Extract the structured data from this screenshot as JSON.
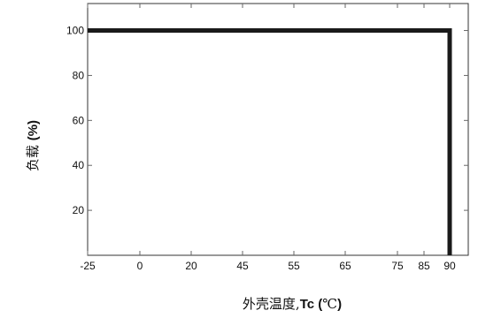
{
  "chart_data": {
    "type": "line",
    "title": "",
    "xlabel": "外壳温度,Tc (℃)",
    "xlabel_parts": {
      "prefix": "外壳温度,",
      "bold": "Tc",
      "paren_open": " (",
      "unit": "℃",
      "paren_close": ")"
    },
    "ylabel": "负载 (%)",
    "ylabel_parts": {
      "prefix": "负载 ",
      "bold": "(%)"
    },
    "x_ticks": [
      "-25",
      "0",
      "20",
      "45",
      "55",
      "65",
      "75",
      "85",
      "90"
    ],
    "y_ticks": [
      20,
      40,
      60,
      80,
      100
    ],
    "ylim": [
      0,
      112
    ],
    "grid": false,
    "legend": "none",
    "series": [
      {
        "points": [
          {
            "x": "-25",
            "y": 100
          },
          {
            "x": "90",
            "y": 100
          },
          {
            "x": "90",
            "y": 0
          }
        ]
      }
    ],
    "colors": {
      "series": "#1a1a1a",
      "frame": "#333333",
      "ticks": "#666666"
    }
  }
}
